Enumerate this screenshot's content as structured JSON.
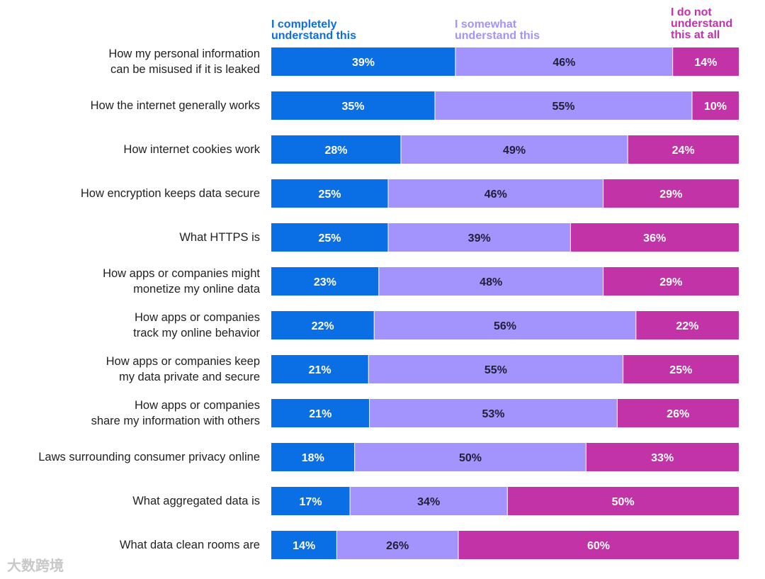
{
  "chart_data": {
    "type": "bar",
    "orientation": "horizontal",
    "stacked": true,
    "legend": "top",
    "grid": false,
    "xlim": [
      0,
      100
    ],
    "categories": [
      "How my personal information\ncan be misused if it is leaked",
      "How the internet generally works",
      "How internet cookies work",
      "How encryption keeps data secure",
      "What HTTPS is",
      "How apps or companies might\nmonetize my online data",
      "How apps or companies\ntrack my online behavior",
      "How apps or companies keep\nmy data private and secure",
      "How apps or companies\nshare my information with others",
      "Laws surrounding consumer privacy online",
      "What aggregated data is",
      "What data clean rooms are"
    ],
    "series": [
      {
        "name": "I completely\nunderstand this",
        "color": "#0a6ee4",
        "label_color": "#ffffff",
        "values": [
          39,
          35,
          28,
          25,
          25,
          23,
          22,
          21,
          21,
          18,
          17,
          14
        ]
      },
      {
        "name": "I somewhat\nunderstand this",
        "color": "#a393fc",
        "label_color": "#1f1f3a",
        "values": [
          46,
          55,
          49,
          46,
          39,
          48,
          56,
          55,
          53,
          50,
          34,
          26
        ]
      },
      {
        "name": "I do not\nunderstand\nthis at all",
        "color": "#c333a8",
        "label_color": "#ffffff",
        "values": [
          14,
          10,
          24,
          29,
          36,
          29,
          22,
          25,
          26,
          33,
          50,
          60
        ]
      }
    ]
  },
  "watermark": "大数跨境"
}
